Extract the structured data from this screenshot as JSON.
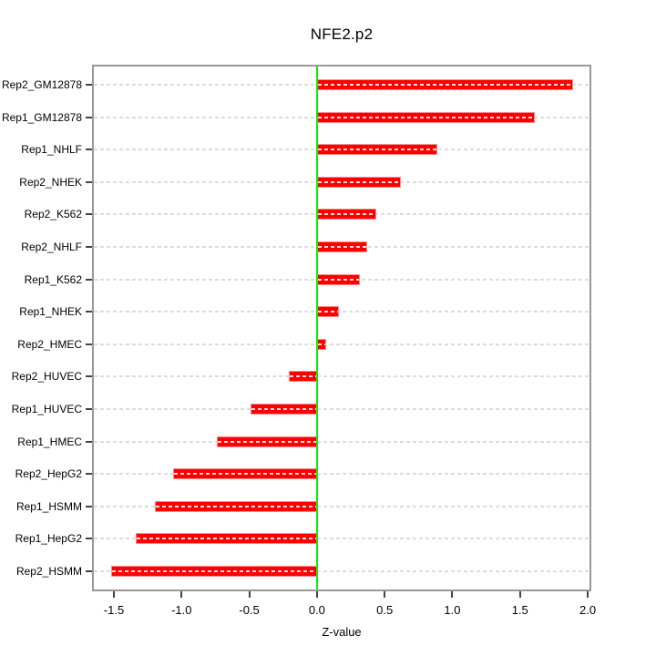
{
  "chart_data": {
    "type": "bar",
    "orientation": "horizontal",
    "title": "NFE2.p2",
    "xlabel": "Z-value",
    "categories": [
      "Rep2_GM12878",
      "Rep1_GM12878",
      "Rep1_NHLF",
      "Rep2_NHEK",
      "Rep2_K562",
      "Rep2_NHLF",
      "Rep1_K562",
      "Rep1_NHEK",
      "Rep2_HMEC",
      "Rep2_HUVEC",
      "Rep1_HUVEC",
      "Rep1_HMEC",
      "Rep2_HepG2",
      "Rep1_HSMM",
      "Rep1_HepG2",
      "Rep2_HSMM"
    ],
    "values": [
      1.89,
      1.61,
      0.89,
      0.62,
      0.44,
      0.37,
      0.32,
      0.16,
      0.07,
      -0.21,
      -0.49,
      -0.74,
      -1.06,
      -1.2,
      -1.34,
      -1.52
    ],
    "x_ticks": [
      -1.5,
      -1.0,
      -0.5,
      0.0,
      0.5,
      1.0,
      1.5,
      2.0
    ],
    "x_tick_labels": [
      "-1.5",
      "-1.0",
      "-0.5",
      "0.0",
      "0.5",
      "1.0",
      "1.5",
      "2.0"
    ],
    "xlim": [
      -1.648,
      2.013
    ],
    "zero_line_x": 0,
    "grid": "dashed-horizontal-per-row",
    "legend": "none",
    "colors": {
      "bar": "#ff0000",
      "bar_edge": "#ff8a8a",
      "bar_inner_dash": "#ffffff",
      "zero_line": "#0bee0b",
      "grid": "#dcdcdc",
      "frame": "#999999",
      "tick": "#444444",
      "text": "#000000",
      "background": "#ffffff"
    }
  }
}
